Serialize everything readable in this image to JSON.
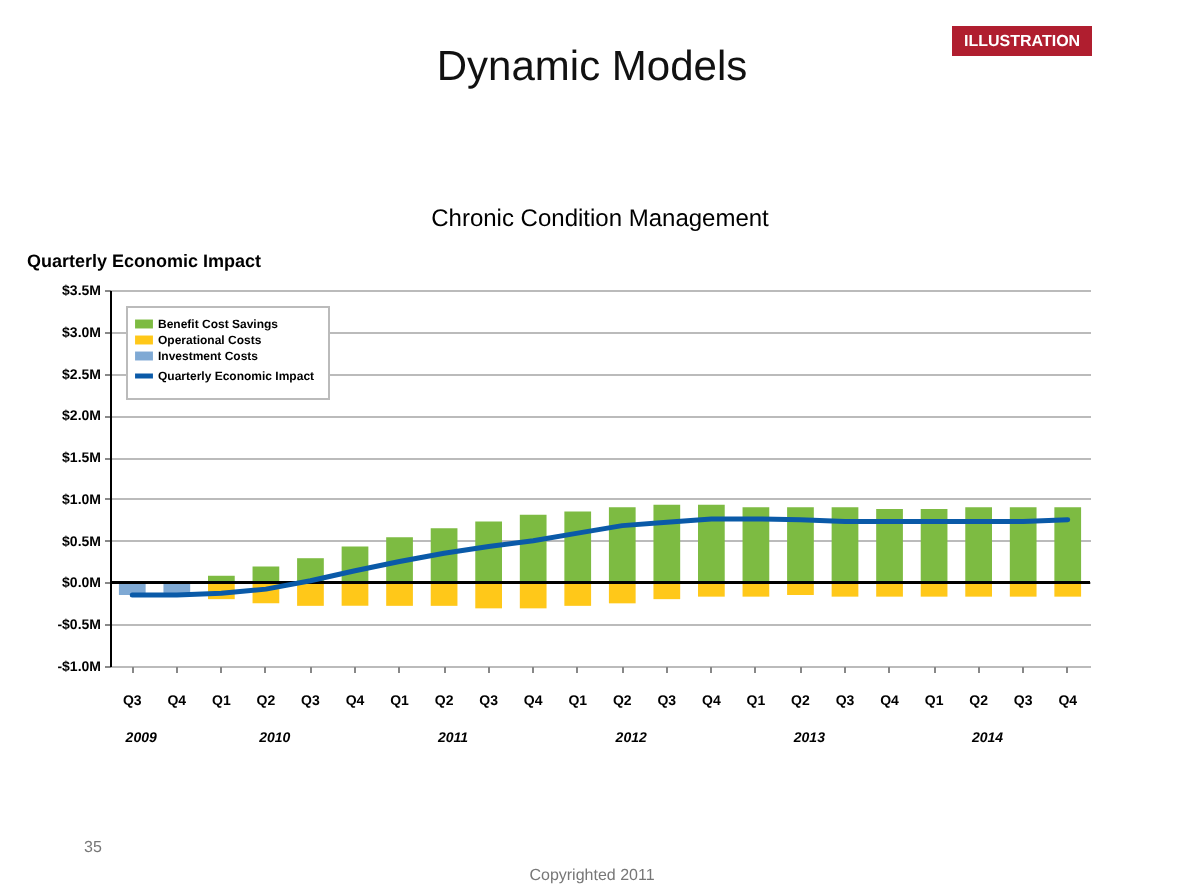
{
  "chart_data": {
    "type": "bar",
    "title": "Dynamic Models",
    "subtitle": "Chronic Condition Management",
    "ylabel": "Quarterly Economic Impact",
    "categories": [
      "Q3",
      "Q4",
      "Q1",
      "Q2",
      "Q3",
      "Q4",
      "Q1",
      "Q2",
      "Q3",
      "Q4",
      "Q1",
      "Q2",
      "Q3",
      "Q4",
      "Q1",
      "Q2",
      "Q3",
      "Q4",
      "Q1",
      "Q2",
      "Q3",
      "Q4"
    ],
    "stacked": true,
    "series": [
      {
        "name": "Benefit Cost Savings",
        "color": "#7dbb42",
        "values": [
          null,
          null,
          0.08,
          0.19,
          0.29,
          0.43,
          0.54,
          0.65,
          0.73,
          0.81,
          0.85,
          0.9,
          0.93,
          0.93,
          0.9,
          0.9,
          0.9,
          0.88,
          0.88,
          0.9,
          0.9,
          0.9
        ]
      },
      {
        "name": "Operational Costs",
        "color": "#ffc819",
        "values": [
          null,
          null,
          -0.2,
          -0.25,
          -0.28,
          -0.28,
          -0.28,
          -0.28,
          -0.31,
          -0.31,
          -0.28,
          -0.25,
          -0.2,
          -0.17,
          -0.17,
          -0.15,
          -0.17,
          -0.17,
          -0.17,
          -0.17,
          -0.17,
          -0.17
        ]
      },
      {
        "name": "Investment Costs",
        "color": "#7fa9d4",
        "values": [
          -0.15,
          -0.15,
          null,
          null,
          null,
          null,
          null,
          null,
          null,
          null,
          null,
          null,
          null,
          null,
          null,
          null,
          null,
          null,
          null,
          null,
          null,
          null
        ]
      },
      {
        "name": "Quarterly Economic Impact",
        "type": "line",
        "color": "#0a5aa8",
        "values": [
          -0.15,
          -0.15,
          -0.13,
          -0.08,
          0.02,
          0.14,
          0.25,
          0.35,
          0.43,
          0.5,
          0.59,
          0.68,
          0.72,
          0.76,
          0.76,
          0.75,
          0.73,
          0.73,
          0.73,
          0.73,
          0.73,
          0.75
        ]
      }
    ],
    "ylim": [
      -1.0,
      3.5
    ],
    "yticks": [
      {
        "value": -1.0,
        "label": "-$1.0M"
      },
      {
        "value": -0.5,
        "label": "-$0.5M"
      },
      {
        "value": 0,
        "label": "$0.0M"
      },
      {
        "value": 0.5,
        "label": "$0.5M"
      },
      {
        "value": 1.0,
        "label": "$1.0M"
      },
      {
        "value": 1.5,
        "label": "$1.5M"
      },
      {
        "value": 2.0,
        "label": "$2.0M"
      },
      {
        "value": 2.5,
        "label": "$2.5M"
      },
      {
        "value": 3.0,
        "label": "$3.0M"
      },
      {
        "value": 3.5,
        "label": "$3.5M"
      }
    ],
    "grid": "y",
    "legend": "top left",
    "annotations": [
      "2009",
      "2010",
      "2011",
      "2012",
      "2013",
      "2014",
      "ILLUSTRATION",
      "35",
      "Copyrighted 2011"
    ]
  }
}
